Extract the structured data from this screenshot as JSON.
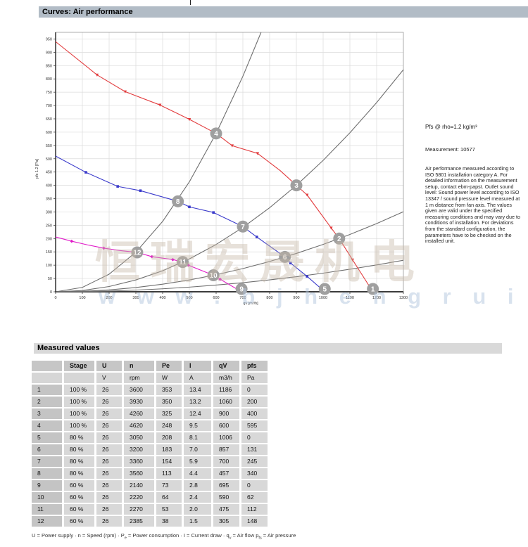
{
  "page": {
    "header_curves": "Curves: Air performance",
    "header_measured": "Measured values"
  },
  "side_notes": {
    "density": "Pfs @ rho=1.2 kg/m³",
    "measurement": "Measurement: 10577",
    "description": "Air performance measured according to ISO 5801 installation category A. For detailed information on the measurement setup, contact ebm-papst. Outlet sound level: Sound power level according to ISO 13347 / sound pressure level measured at 1 m distance from fan axis. The values given are valid under the specified measuring conditions and may vary due to conditions of installation. For deviations from the standard configuration, the parameters have to be checked on the installed unit."
  },
  "watermark": {
    "cn_text": "恒瑞宏晟机电",
    "url_text": "w w w . b j h e n g r u i . c n"
  },
  "chart_data": {
    "type": "line",
    "title": "",
    "xlabel": "qv [m³/h]",
    "ylabel": "pfs 1.2 [Pa]",
    "xlim": [
      0,
      1300
    ],
    "ylim": [
      0,
      975
    ],
    "xtick_step": 100,
    "ytick_step": 50,
    "ytick_max": 950,
    "grid": true,
    "colors": {
      "stage100": "#e23b3d",
      "stage80": "#3a3acb",
      "stage60": "#e01ac8",
      "system": "#6e6e6e",
      "op_marker_fill": "#9f9f9f",
      "op_marker_text": "#ffffff",
      "gridline": "#dcdcdc",
      "axis": "#3c3c3c",
      "frame": "#999999"
    },
    "series": [
      {
        "name": "system-curve-high",
        "color": "#6e6e6e",
        "marker": "none",
        "points": [
          [
            0,
            0
          ],
          [
            100,
            16.5
          ],
          [
            200,
            66.1
          ],
          [
            300,
            148.8
          ],
          [
            400,
            264.5
          ],
          [
            500,
            413.3
          ],
          [
            600,
            595.1
          ],
          [
            700,
            810.0
          ],
          [
            768,
            975
          ]
        ]
      },
      {
        "name": "system-curve-mid",
        "color": "#6e6e6e",
        "marker": "none",
        "points": [
          [
            0,
            0
          ],
          [
            100,
            4.9
          ],
          [
            200,
            19.8
          ],
          [
            300,
            44.4
          ],
          [
            400,
            79.0
          ],
          [
            500,
            123.5
          ],
          [
            600,
            177.8
          ],
          [
            700,
            242.0
          ],
          [
            800,
            316.0
          ],
          [
            900,
            400.0
          ],
          [
            1000,
            493.8
          ],
          [
            1100,
            597.5
          ],
          [
            1200,
            711.1
          ],
          [
            1300,
            834.6
          ]
        ]
      },
      {
        "name": "system-curve-low",
        "color": "#6e6e6e",
        "marker": "none",
        "points": [
          [
            0,
            0
          ],
          [
            100,
            1.8
          ],
          [
            200,
            7.1
          ],
          [
            300,
            16.0
          ],
          [
            400,
            28.5
          ],
          [
            500,
            44.5
          ],
          [
            600,
            64.1
          ],
          [
            700,
            87.2
          ],
          [
            800,
            113.9
          ],
          [
            900,
            144.2
          ],
          [
            1000,
            178.0
          ],
          [
            1100,
            215.4
          ],
          [
            1200,
            256.3
          ],
          [
            1300,
            300.8
          ]
        ]
      },
      {
        "name": "system-curve-lowest",
        "color": "#6e6e6e",
        "marker": "none",
        "points": [
          [
            0,
            0
          ],
          [
            100,
            0.7
          ],
          [
            200,
            2.8
          ],
          [
            300,
            6.3
          ],
          [
            400,
            11.2
          ],
          [
            500,
            17.5
          ],
          [
            600,
            25.2
          ],
          [
            700,
            34.3
          ],
          [
            800,
            44.8
          ],
          [
            900,
            56.7
          ],
          [
            1000,
            70.0
          ],
          [
            1100,
            84.7
          ],
          [
            1200,
            100.8
          ],
          [
            1300,
            118.3
          ]
        ]
      },
      {
        "name": "fan-curve-60pct",
        "color": "#e01ac8",
        "marker": "diamond",
        "points": [
          [
            0,
            206
          ],
          [
            60,
            190
          ],
          [
            120,
            176
          ],
          [
            180,
            164
          ],
          [
            240,
            155
          ],
          [
            305,
            148
          ],
          [
            360,
            132
          ],
          [
            438,
            121
          ],
          [
            475,
            112
          ],
          [
            496,
            100
          ],
          [
            590,
            62
          ],
          [
            615,
            47
          ],
          [
            695,
            0
          ]
        ],
        "marker_points": [
          [
            60,
            190
          ],
          [
            180,
            164
          ],
          [
            360,
            132
          ],
          [
            438,
            121
          ],
          [
            496,
            100
          ],
          [
            615,
            47
          ]
        ]
      },
      {
        "name": "fan-curve-80pct",
        "color": "#3a3acb",
        "marker": "square",
        "points": [
          [
            0,
            510
          ],
          [
            113,
            449
          ],
          [
            232,
            396
          ],
          [
            317,
            380
          ],
          [
            457,
            340
          ],
          [
            500,
            319
          ],
          [
            590,
            298
          ],
          [
            700,
            245
          ],
          [
            752,
            206
          ],
          [
            857,
            131
          ],
          [
            878,
            108
          ],
          [
            940,
            58
          ],
          [
            1006,
            0
          ]
        ],
        "marker_points": [
          [
            113,
            449
          ],
          [
            232,
            396
          ],
          [
            317,
            380
          ],
          [
            500,
            319
          ],
          [
            590,
            298
          ],
          [
            752,
            206
          ],
          [
            878,
            108
          ],
          [
            940,
            58
          ]
        ]
      },
      {
        "name": "fan-curve-100pct",
        "color": "#e23b3d",
        "marker": "triangle",
        "points": [
          [
            0,
            940
          ],
          [
            155,
            815
          ],
          [
            260,
            752
          ],
          [
            390,
            702
          ],
          [
            500,
            648
          ],
          [
            600,
            595
          ],
          [
            660,
            549
          ],
          [
            755,
            520
          ],
          [
            840,
            455
          ],
          [
            900,
            400
          ],
          [
            940,
            364
          ],
          [
            1030,
            240
          ],
          [
            1060,
            200
          ],
          [
            1110,
            120
          ],
          [
            1186,
            0
          ]
        ],
        "marker_points": [
          [
            155,
            815
          ],
          [
            260,
            752
          ],
          [
            390,
            702
          ],
          [
            500,
            648
          ],
          [
            660,
            549
          ],
          [
            755,
            520
          ],
          [
            940,
            364
          ],
          [
            1030,
            240
          ],
          [
            1110,
            120
          ]
        ]
      }
    ],
    "operating_points": [
      {
        "label": "1",
        "qv": 1186,
        "pfs": 0
      },
      {
        "label": "2",
        "qv": 1060,
        "pfs": 200
      },
      {
        "label": "3",
        "qv": 900,
        "pfs": 400
      },
      {
        "label": "4",
        "qv": 600,
        "pfs": 595
      },
      {
        "label": "5",
        "qv": 1006,
        "pfs": 0
      },
      {
        "label": "6",
        "qv": 857,
        "pfs": 131
      },
      {
        "label": "7",
        "qv": 700,
        "pfs": 245
      },
      {
        "label": "8",
        "qv": 457,
        "pfs": 340
      },
      {
        "label": "9",
        "qv": 695,
        "pfs": 0
      },
      {
        "label": "10",
        "qv": 590,
        "pfs": 62
      },
      {
        "label": "11",
        "qv": 475,
        "pfs": 112
      },
      {
        "label": "12",
        "qv": 305,
        "pfs": 148
      }
    ]
  },
  "table": {
    "columns": [
      "",
      "Stage",
      "U",
      "n",
      "Pe",
      "I",
      "qV",
      "pfs"
    ],
    "units": [
      "",
      "",
      "V",
      "rpm",
      "W",
      "A",
      "m3/h",
      "Pa"
    ],
    "rows": [
      [
        "1",
        "100 %",
        "26",
        "3600",
        "353",
        "13.4",
        "1186",
        "0"
      ],
      [
        "2",
        "100 %",
        "26",
        "3930",
        "350",
        "13.2",
        "1060",
        "200"
      ],
      [
        "3",
        "100 %",
        "26",
        "4260",
        "325",
        "12.4",
        "900",
        "400"
      ],
      [
        "4",
        "100 %",
        "26",
        "4620",
        "248",
        "9.5",
        "600",
        "595"
      ],
      [
        "5",
        "80 %",
        "26",
        "3050",
        "208",
        "8.1",
        "1006",
        "0"
      ],
      [
        "6",
        "80 %",
        "26",
        "3200",
        "183",
        "7.0",
        "857",
        "131"
      ],
      [
        "7",
        "80 %",
        "26",
        "3360",
        "154",
        "5.9",
        "700",
        "245"
      ],
      [
        "8",
        "80 %",
        "26",
        "3560",
        "113",
        "4.4",
        "457",
        "340"
      ],
      [
        "9",
        "60 %",
        "26",
        "2140",
        "73",
        "2.8",
        "695",
        "0"
      ],
      [
        "10",
        "60 %",
        "26",
        "2220",
        "64",
        "2.4",
        "590",
        "62"
      ],
      [
        "11",
        "60 %",
        "26",
        "2270",
        "53",
        "2.0",
        "475",
        "112"
      ],
      [
        "12",
        "60 %",
        "26",
        "2385",
        "38",
        "1.5",
        "305",
        "148"
      ]
    ]
  },
  "footer_legend": {
    "segments": [
      {
        "t": "U = Power supply · n = Speed (rpm) · P"
      },
      {
        "sub": "e"
      },
      {
        "t": " = Power consumption · I = Current draw · q"
      },
      {
        "sub": "v"
      },
      {
        "t": " = Air flow p"
      },
      {
        "sub": "fs"
      },
      {
        "t": " = Air pressure"
      }
    ]
  }
}
